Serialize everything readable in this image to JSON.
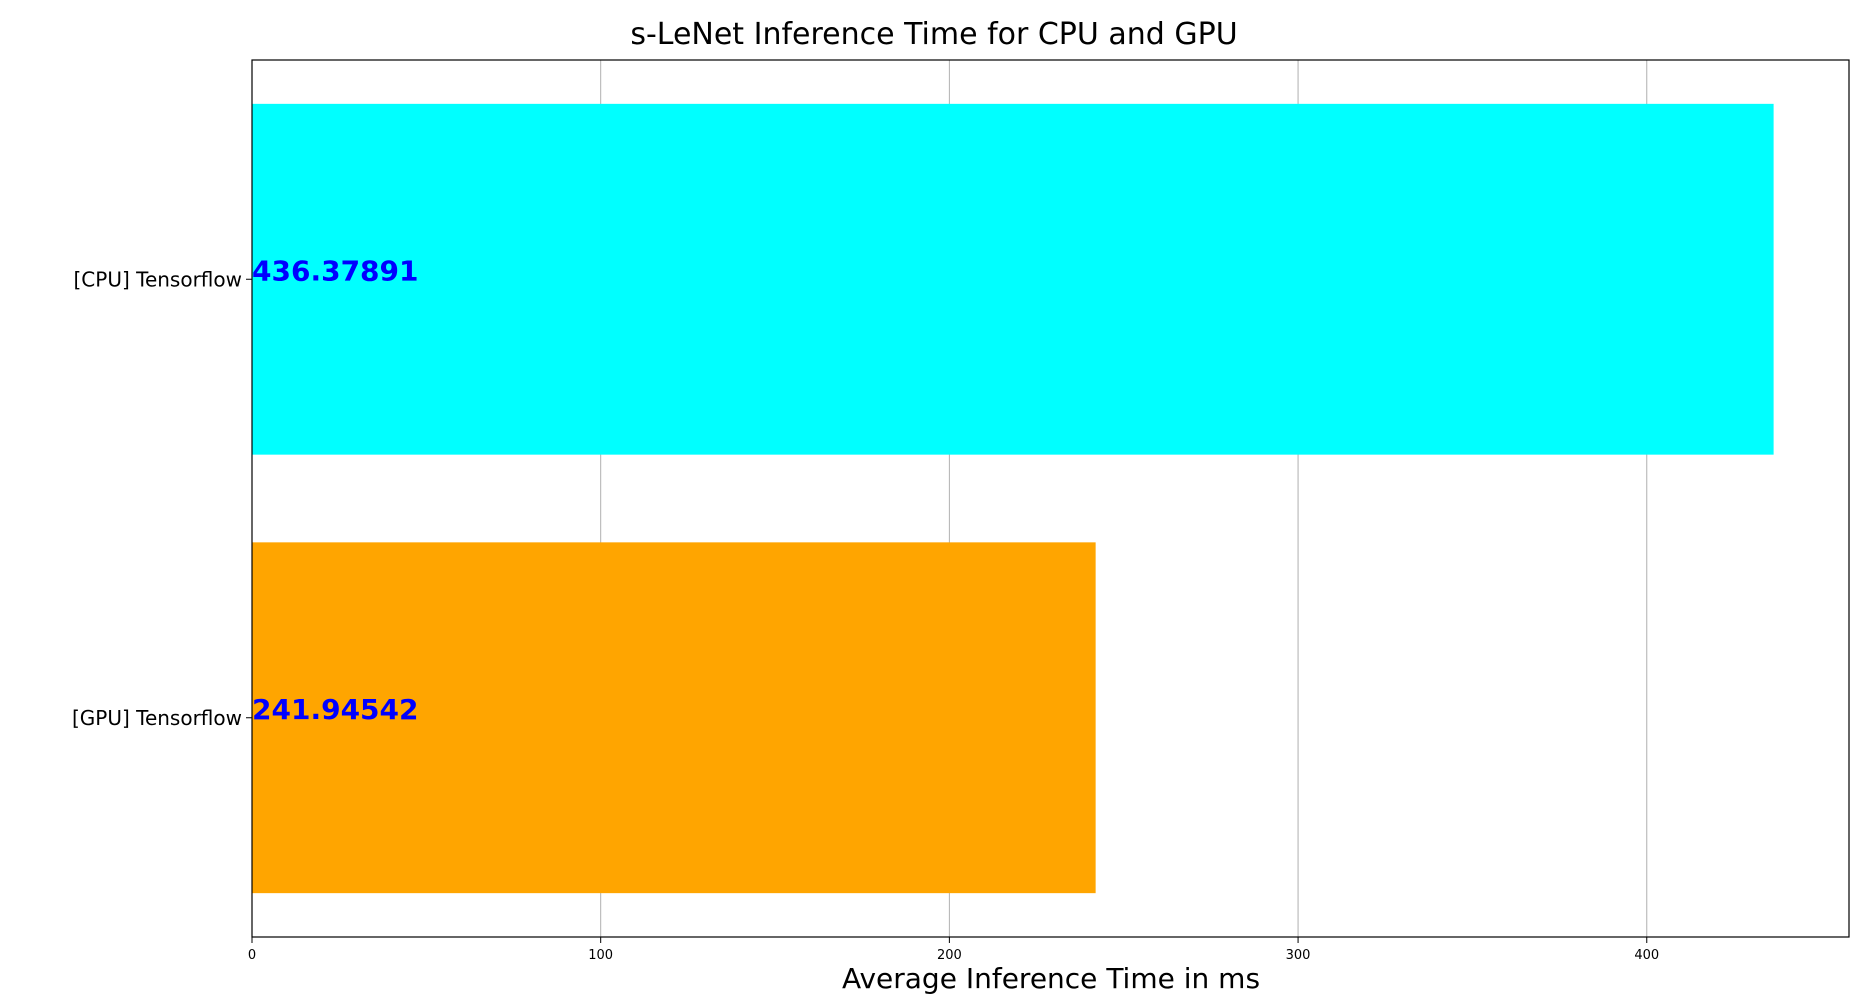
{
  "chart_data": {
    "type": "bar",
    "orientation": "horizontal",
    "title": "s-LeNet Inference Time for CPU and GPU",
    "xlabel": "Average Inference Time in ms",
    "ylabel": "",
    "categories": [
      "[CPU] Tensorflow",
      "[GPU] Tensorflow"
    ],
    "values": [
      436.37891,
      241.94542
    ],
    "data_labels": [
      "436.37891",
      "241.94542"
    ],
    "bar_colors": [
      "#00ffff",
      "#ffa500"
    ],
    "label_color": "#0000ff",
    "xlim": [
      0,
      458
    ],
    "xticks": [
      0,
      100,
      200,
      300,
      400
    ],
    "grid": "vertical"
  }
}
